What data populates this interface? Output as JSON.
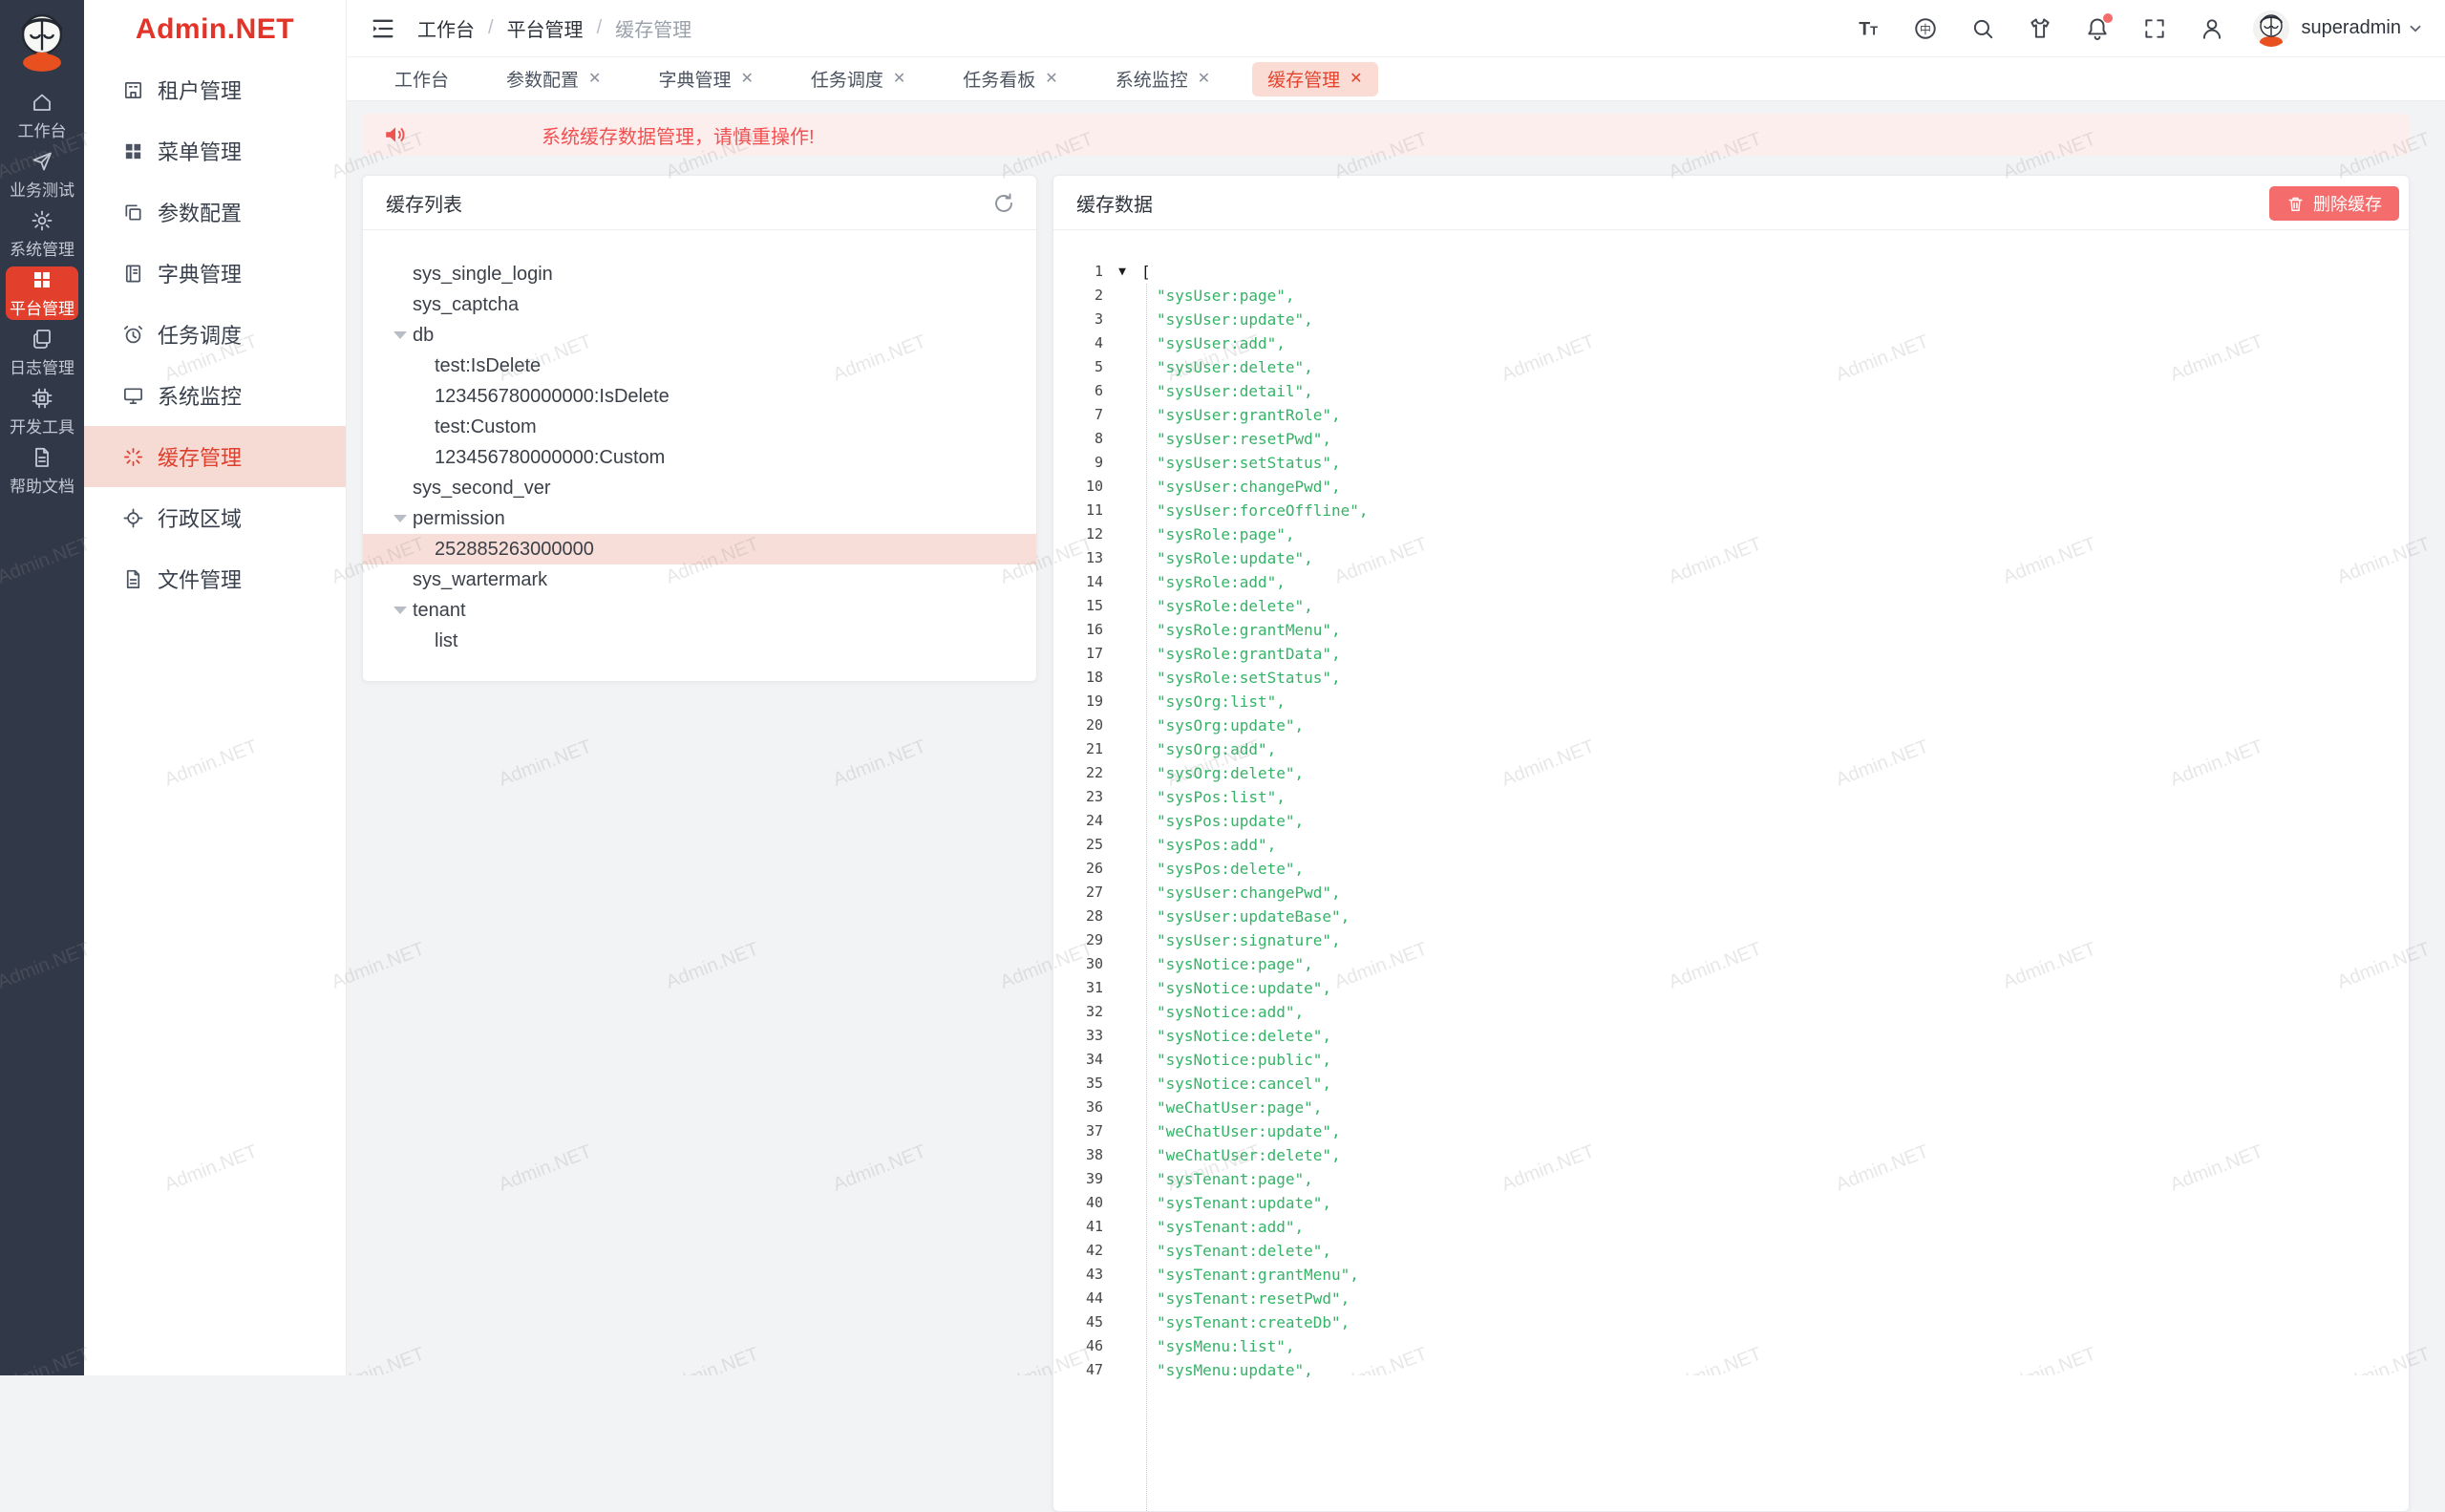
{
  "watermark": "Admin.NET",
  "brand": {
    "logo_text": "Admin.NET"
  },
  "rail": {
    "items": [
      {
        "label": "工作台",
        "icon": "home-icon",
        "active": false
      },
      {
        "label": "业务测试",
        "icon": "send-icon",
        "active": false
      },
      {
        "label": "系统管理",
        "icon": "gear-icon",
        "active": false
      },
      {
        "label": "平台管理",
        "icon": "grid-icon",
        "active": true
      },
      {
        "label": "日志管理",
        "icon": "logs-icon",
        "active": false
      },
      {
        "label": "开发工具",
        "icon": "cpu-icon",
        "active": false
      },
      {
        "label": "帮助文档",
        "icon": "document-icon",
        "active": false
      }
    ]
  },
  "sidebar": {
    "items": [
      {
        "label": "租户管理",
        "icon": "tenant-icon",
        "active": false
      },
      {
        "label": "菜单管理",
        "icon": "grid-icon",
        "active": false
      },
      {
        "label": "参数配置",
        "icon": "copy-icon",
        "active": false
      },
      {
        "label": "字典管理",
        "icon": "book-icon",
        "active": false
      },
      {
        "label": "任务调度",
        "icon": "alarm-icon",
        "active": false
      },
      {
        "label": "系统监控",
        "icon": "monitor-icon",
        "active": false
      },
      {
        "label": "缓存管理",
        "icon": "loading-icon",
        "active": true
      },
      {
        "label": "行政区域",
        "icon": "location-icon",
        "active": false
      },
      {
        "label": "文件管理",
        "icon": "file-icon",
        "active": false
      }
    ]
  },
  "header": {
    "breadcrumb": [
      "工作台",
      "平台管理",
      "缓存管理"
    ],
    "separator": "/",
    "icons": [
      {
        "name": "text-size-icon",
        "badge": false
      },
      {
        "name": "language-icon",
        "badge": false
      },
      {
        "name": "search-icon",
        "badge": false
      },
      {
        "name": "theme-icon",
        "badge": false
      },
      {
        "name": "notification-icon",
        "badge": true
      },
      {
        "name": "fullscreen-icon",
        "badge": false
      },
      {
        "name": "profile-icon",
        "badge": false
      }
    ],
    "username": "superadmin"
  },
  "tabs": [
    {
      "label": "工作台",
      "closable": false,
      "active": false
    },
    {
      "label": "参数配置",
      "closable": true,
      "active": false
    },
    {
      "label": "字典管理",
      "closable": true,
      "active": false
    },
    {
      "label": "任务调度",
      "closable": true,
      "active": false
    },
    {
      "label": "任务看板",
      "closable": true,
      "active": false
    },
    {
      "label": "系统监控",
      "closable": true,
      "active": false
    },
    {
      "label": "缓存管理",
      "closable": true,
      "active": true
    }
  ],
  "alert": {
    "text": "系统缓存数据管理，请慎重操作!"
  },
  "cache_list": {
    "title": "缓存列表",
    "tree": [
      {
        "label": "sys_single_login",
        "level": 1,
        "expanded": false,
        "selected": false
      },
      {
        "label": "sys_captcha",
        "level": 1,
        "expanded": false,
        "selected": false
      },
      {
        "label": "db",
        "level": 1,
        "expanded": true,
        "selected": false
      },
      {
        "label": "test:IsDelete",
        "level": 2,
        "expanded": false,
        "selected": false
      },
      {
        "label": "123456780000000:IsDelete",
        "level": 2,
        "expanded": false,
        "selected": false
      },
      {
        "label": "test:Custom",
        "level": 2,
        "expanded": false,
        "selected": false
      },
      {
        "label": "123456780000000:Custom",
        "level": 2,
        "expanded": false,
        "selected": false
      },
      {
        "label": "sys_second_ver",
        "level": 1,
        "expanded": false,
        "selected": false
      },
      {
        "label": "permission",
        "level": 1,
        "expanded": true,
        "selected": false
      },
      {
        "label": "252885263000000",
        "level": 2,
        "expanded": false,
        "selected": true
      },
      {
        "label": "sys_wartermark",
        "level": 1,
        "expanded": false,
        "selected": false
      },
      {
        "label": "tenant",
        "level": 1,
        "expanded": true,
        "selected": false
      },
      {
        "label": "list",
        "level": 2,
        "expanded": false,
        "selected": false
      }
    ]
  },
  "cache_data": {
    "title": "缓存数据",
    "delete_button": "删除缓存",
    "code": {
      "open_bracket": "[",
      "items": [
        "sysUser:page",
        "sysUser:update",
        "sysUser:add",
        "sysUser:delete",
        "sysUser:detail",
        "sysUser:grantRole",
        "sysUser:resetPwd",
        "sysUser:setStatus",
        "sysUser:changePwd",
        "sysUser:forceOffline",
        "sysRole:page",
        "sysRole:update",
        "sysRole:add",
        "sysRole:delete",
        "sysRole:grantMenu",
        "sysRole:grantData",
        "sysRole:setStatus",
        "sysOrg:list",
        "sysOrg:update",
        "sysOrg:add",
        "sysOrg:delete",
        "sysPos:list",
        "sysPos:update",
        "sysPos:add",
        "sysPos:delete",
        "sysUser:changePwd",
        "sysUser:updateBase",
        "sysUser:signature",
        "sysNotice:page",
        "sysNotice:update",
        "sysNotice:add",
        "sysNotice:delete",
        "sysNotice:public",
        "sysNotice:cancel",
        "weChatUser:page",
        "weChatUser:update",
        "weChatUser:delete",
        "sysTenant:page",
        "sysTenant:update",
        "sysTenant:add",
        "sysTenant:delete",
        "sysTenant:grantMenu",
        "sysTenant:resetPwd",
        "sysTenant:createDb",
        "sysMenu:list",
        "sysMenu:update"
      ]
    }
  },
  "colors": {
    "accent_red": "#e2402d",
    "danger": "#f56c6c",
    "active_tab_bg": "#fadcd5",
    "alert_bg": "#fdeeee",
    "code_string_green": "#35b267",
    "rail_bg": "#313847",
    "selected_tree_bg": "#f8ded8"
  }
}
